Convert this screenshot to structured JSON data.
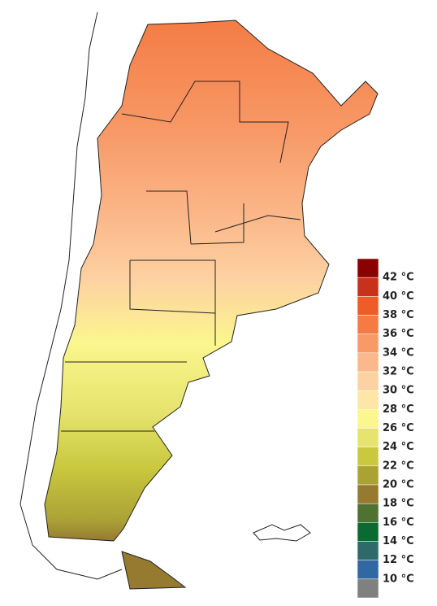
{
  "legend": {
    "labels": [
      "42 °C",
      "40 °C",
      "38 °C",
      "36 °C",
      "34 °C",
      "32 °C",
      "30 °C",
      "28 °C",
      "26 °C",
      "24 °C",
      "22 °C",
      "20 °C",
      "18 °C",
      "16 °C",
      "14 °C",
      "12 °C",
      "10 °C"
    ],
    "colors": [
      "#8b0000",
      "#c8321a",
      "#ee5c28",
      "#f47c44",
      "#f89a68",
      "#fbb88a",
      "#fdd2a2",
      "#fde6a6",
      "#fbf68e",
      "#e6e46e",
      "#c9c83e",
      "#aba236",
      "#957a30",
      "#4f7232",
      "#0a6a30",
      "#2f6a6a",
      "#2f68a2",
      "#808080"
    ]
  }
}
